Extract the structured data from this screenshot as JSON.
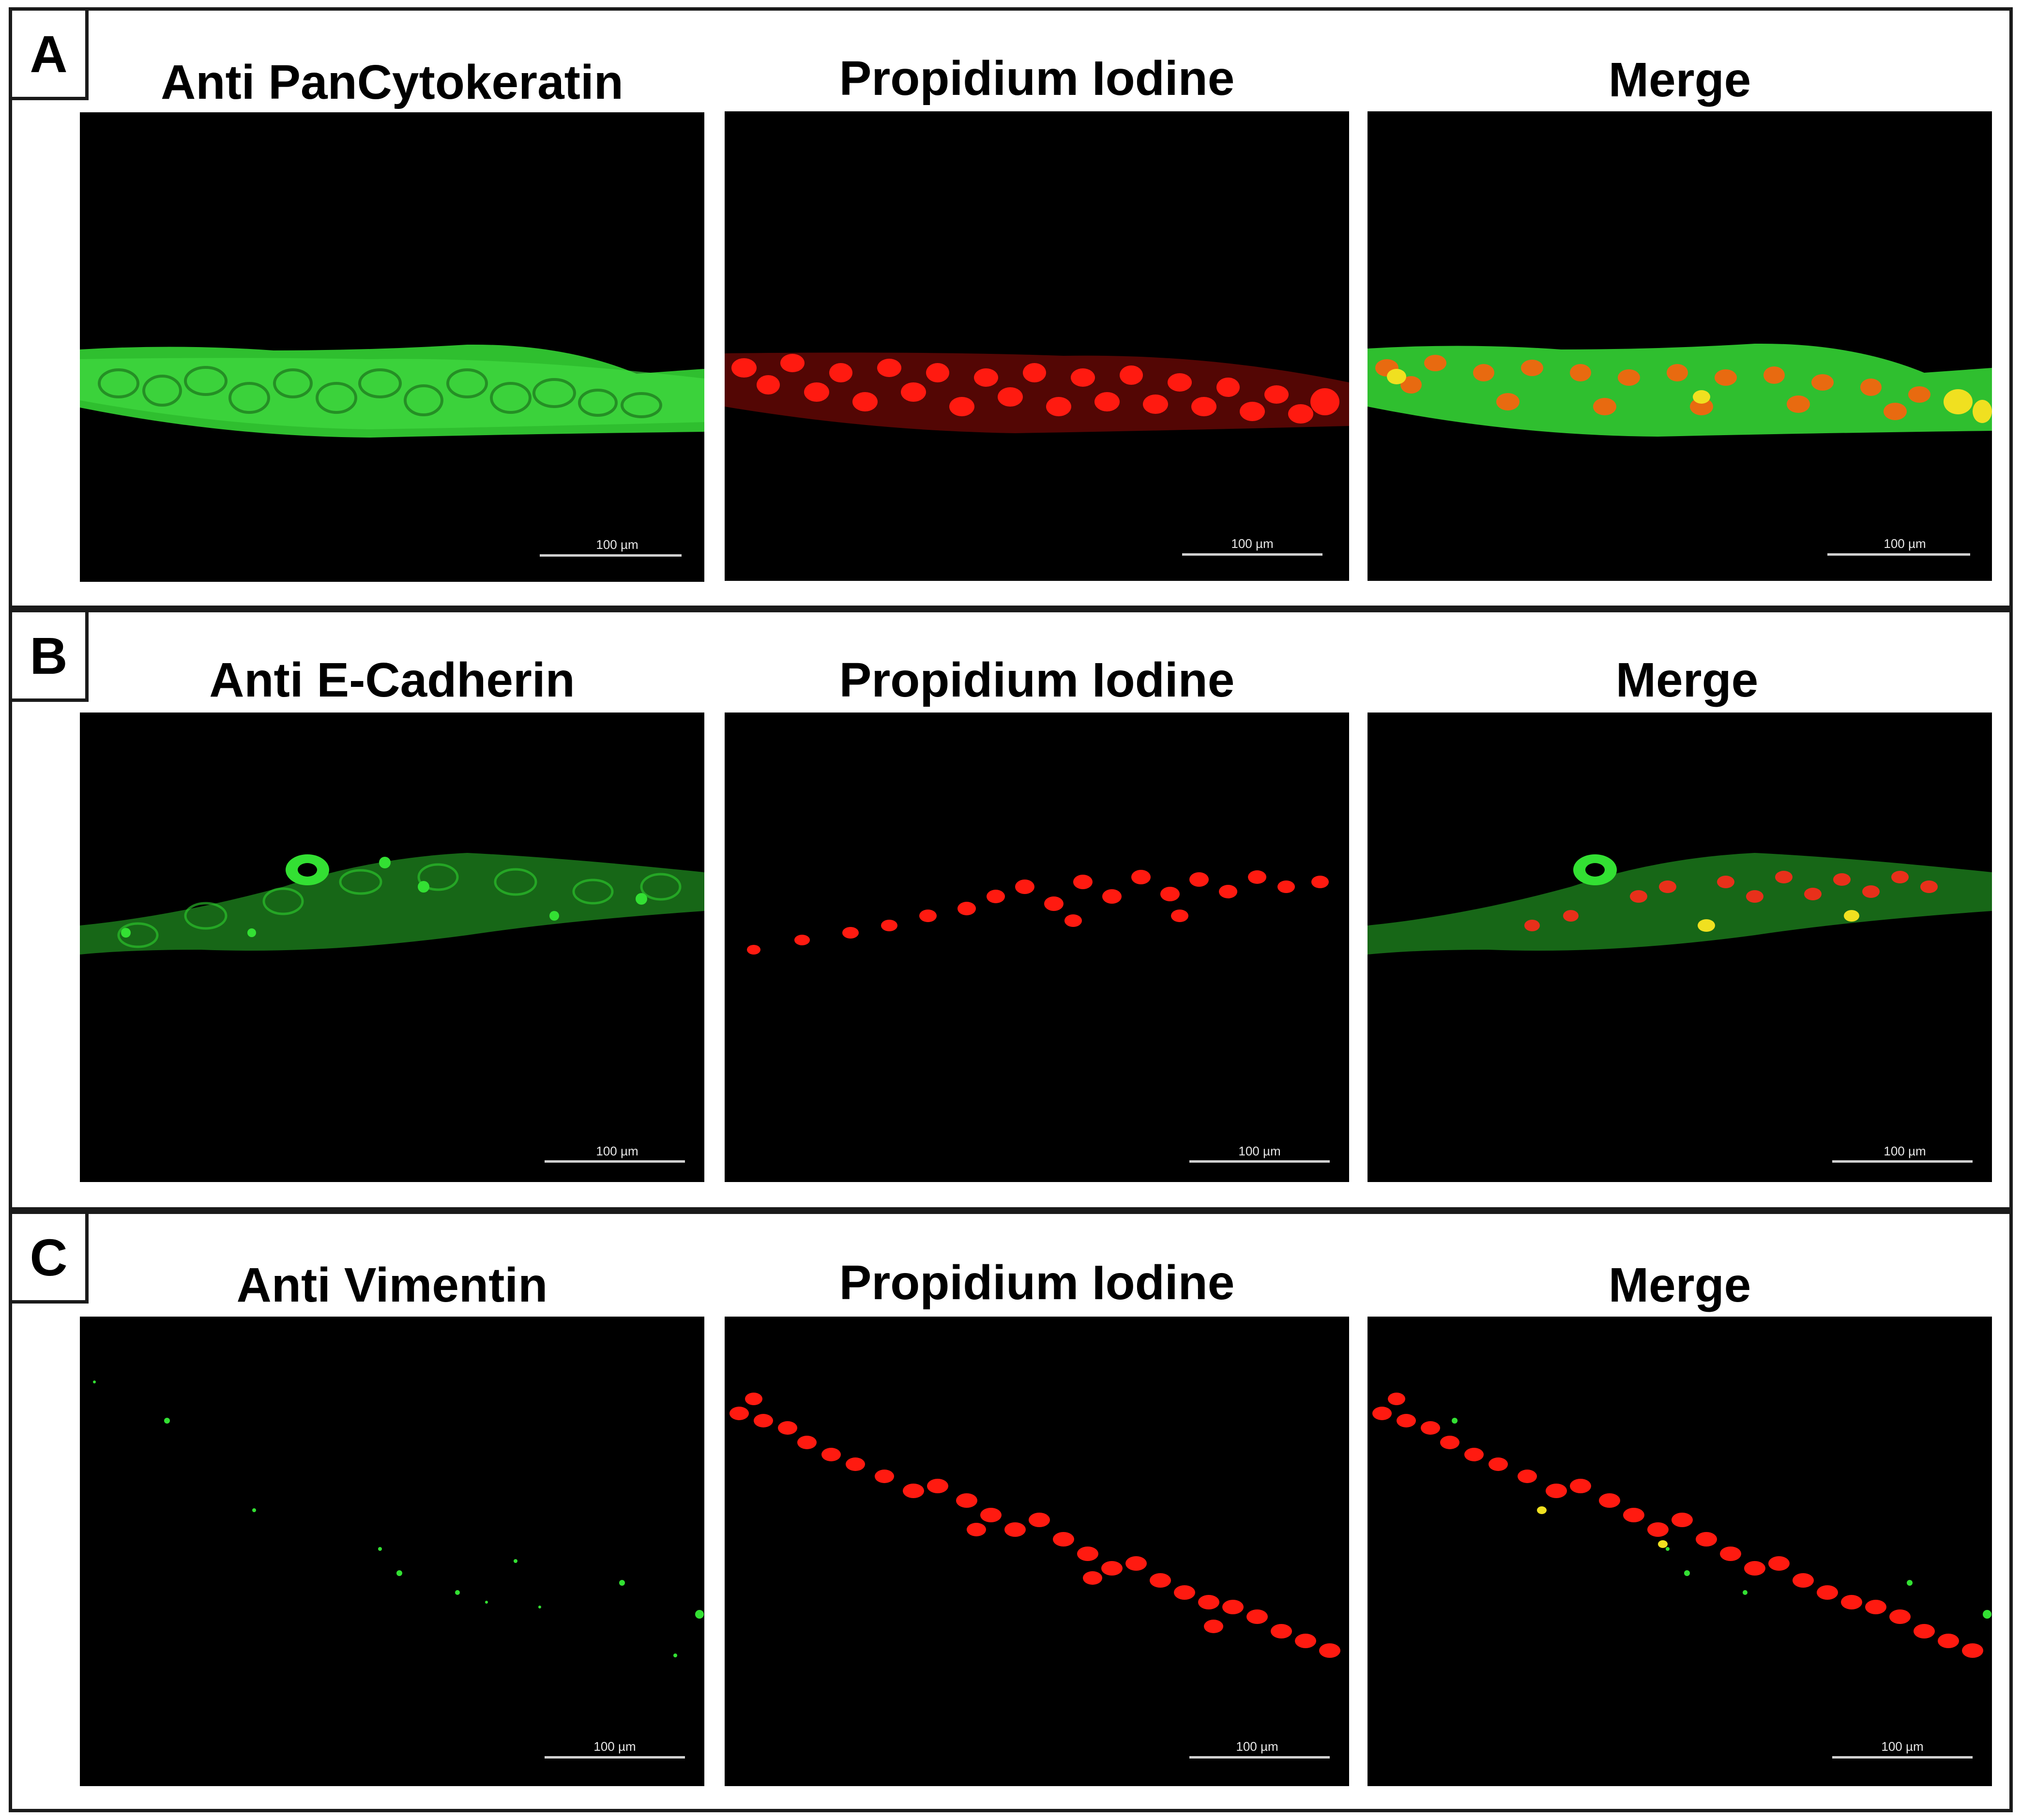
{
  "figure": {
    "colors": {
      "green": "#33e033",
      "red": "#ff1a10",
      "yellow": "#f0e020",
      "background": "#000000"
    },
    "panels": [
      {
        "letter": "A",
        "columns": [
          {
            "title": "Anti PanCytokeratin",
            "channel": "green",
            "scale_bar": "100 µm"
          },
          {
            "title": "Propidium Iodine",
            "channel": "red",
            "scale_bar": "100 µm"
          },
          {
            "title": "Merge",
            "channel": "merge",
            "scale_bar": "100 µm"
          }
        ]
      },
      {
        "letter": "B",
        "columns": [
          {
            "title": "Anti E-Cadherin",
            "channel": "green",
            "scale_bar": "100 µm"
          },
          {
            "title": "Propidium Iodine",
            "channel": "red",
            "scale_bar": "100 µm"
          },
          {
            "title": "Merge",
            "channel": "merge",
            "scale_bar": "100 µm"
          }
        ]
      },
      {
        "letter": "C",
        "columns": [
          {
            "title": "Anti Vimentin",
            "channel": "green",
            "scale_bar": "100 µm"
          },
          {
            "title": "Propidium Iodine",
            "channel": "red",
            "scale_bar": "100 µm"
          },
          {
            "title": "Merge",
            "channel": "merge",
            "scale_bar": "100 µm"
          }
        ]
      }
    ]
  }
}
